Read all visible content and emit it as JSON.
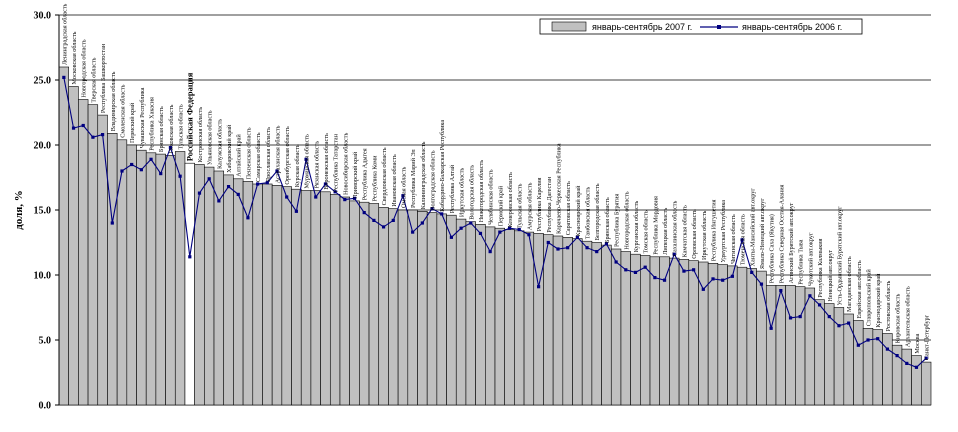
{
  "chart_data": {
    "type": "bar",
    "ylabel": "доля, %",
    "ylim": [
      0,
      30
    ],
    "yticks": [
      "0.0",
      "5.0",
      "10.0",
      "15.0",
      "20.0",
      "25.0",
      "30.0"
    ],
    "grid": true,
    "legend_position": "top-right",
    "highlight_category": "Российская Федерация",
    "colors": {
      "bar": "#c0c0c0",
      "highlight": "#ffffff",
      "line": "#000080",
      "grid": "#000000"
    },
    "series": [
      {
        "name": "январь-сентябрь 2007 г.",
        "kind": "bar",
        "values": [
          26.0,
          24.5,
          23.5,
          23.1,
          22.3,
          20.9,
          20.4,
          20.0,
          19.6,
          19.4,
          19.3,
          19.2,
          19.5,
          18.6,
          18.5,
          18.3,
          18.0,
          17.7,
          17.4,
          17.2,
          17.0,
          17.0,
          16.9,
          16.8,
          16.6,
          16.5,
          16.5,
          16.4,
          16.2,
          16.0,
          15.7,
          15.6,
          15.5,
          15.2,
          15.1,
          15.0,
          15.0,
          14.9,
          14.8,
          14.7,
          14.6,
          14.3,
          14.1,
          13.9,
          13.7,
          13.6,
          13.5,
          13.4,
          13.3,
          13.2,
          13.1,
          13.0,
          12.9,
          12.8,
          12.6,
          12.5,
          12.3,
          12.0,
          11.8,
          11.6,
          11.5,
          11.4,
          11.4,
          11.3,
          11.2,
          11.1,
          11.0,
          10.9,
          10.8,
          10.7,
          10.6,
          10.5,
          10.3,
          9.2,
          9.2,
          9.2,
          9.1,
          9.0,
          8.1,
          7.8,
          7.5,
          7.0,
          6.5,
          5.9,
          5.8,
          5.5,
          4.6,
          4.3,
          3.8,
          3.3
        ]
      },
      {
        "name": "январь-сентябрь 2006 г.",
        "kind": "line",
        "values": [
          25.2,
          21.3,
          21.5,
          20.6,
          20.8,
          14.0,
          18.0,
          18.5,
          18.1,
          18.9,
          17.8,
          19.8,
          17.6,
          11.4,
          16.3,
          17.4,
          15.7,
          16.8,
          16.2,
          14.4,
          17.0,
          17.1,
          18.0,
          16.0,
          14.9,
          18.9,
          16.0,
          17.0,
          16.4,
          15.8,
          15.9,
          14.8,
          14.2,
          13.7,
          14.2,
          16.1,
          13.3,
          14.0,
          15.1,
          14.7,
          12.9,
          13.6,
          14.0,
          13.2,
          11.8,
          13.3,
          13.6,
          13.5,
          13.1,
          9.1,
          12.5,
          12.0,
          12.1,
          12.9,
          12.1,
          11.8,
          12.4,
          11.0,
          10.4,
          10.2,
          10.6,
          9.8,
          9.6,
          11.6,
          10.3,
          10.4,
          8.9,
          9.7,
          9.6,
          9.9,
          12.7,
          10.2,
          9.3,
          5.9,
          8.8,
          6.7,
          6.8,
          8.4,
          7.7,
          6.8,
          6.1,
          6.3,
          4.6,
          5.0,
          5.1,
          4.3,
          3.8,
          3.2,
          2.9,
          3.6
        ]
      }
    ],
    "categories": [
      "Ленинградская область",
      "Московская область",
      "Новгородская область",
      "Тверская область",
      "Республика Башкортостан",
      "Владимирская область",
      "Смоленская область",
      "Пермский край",
      "Чувашская Республика",
      "Республика Хакасия",
      "Брянская область",
      "Псковская область",
      "Тульская область",
      "Российская Федерация",
      "Костромская область",
      "Ульяновская область",
      "Калужская область",
      "Хабаровский край",
      "Алтайский край",
      "Пензенская область",
      "Самарская область",
      "Ярославская область",
      "Астраханская область",
      "Оренбургская область",
      "Курская область",
      "Мурманская область",
      "Рязанская область",
      "Воронежская область",
      "Республика Татарстан",
      "Новосибирская область",
      "Приморский край",
      "Республика Адыгея",
      "Республика Коми",
      "Свердловская область",
      "Ивановская область",
      "Омская область",
      "Республика Марий Эл",
      "Калининградская область",
      "Волгоградская область",
      "Кабардино-Балкарская Республика",
      "Республика Алтай",
      "Иркутская область",
      "Вологодская область",
      "Нижегородская область",
      "Челябинская область",
      "Пермский край",
      "Кемеровская область",
      "Тульская область",
      "Амурская область",
      "Республика Карелия",
      "Республика Дагестан",
      "Карачаево-Черкесская Республика",
      "Саратовская область",
      "Красноярский край",
      "Тамбовская область",
      "Белгородская область",
      "Брянская область",
      "Республика Бурятия",
      "Новгородская область",
      "Курганская область",
      "Томская область",
      "Республика Мордовия",
      "Липецкая область",
      "Сахалинская область",
      "Камчатская область",
      "Орловская область",
      "Иркутская область",
      "Республика Ингушетия",
      "Удмуртская Республика",
      "Читинская область",
      "Тюменская область",
      "Ханты-Мансийский авт.округ",
      "Ямало-Ненецкий авт.округ",
      "Республика Саха (Якутия)",
      "Республика Северная Осетия-Алания",
      "Агинский Бурятский авт.округ",
      "Республика Тыва",
      "Чукотский авт.округ",
      "Республика Калмыкия",
      "Ненецкий авт.округ",
      "Усть-Ордынский Бурятский авт.округ",
      "Магаданская область",
      "Еврейская авт.область",
      "Ставропольский край",
      "Краснодарский край",
      "Ростовская область",
      "Кировская область",
      "Архангельская область",
      "Москва",
      "Санкт-Петербург"
    ]
  }
}
